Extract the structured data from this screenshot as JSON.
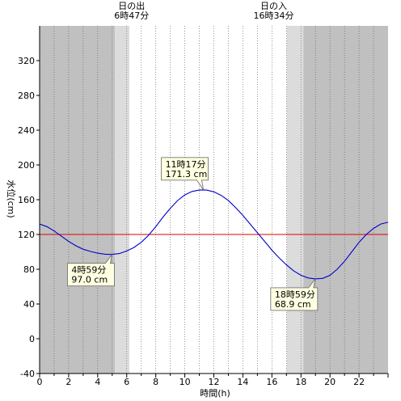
{
  "chart_data": {
    "type": "line",
    "xlabel": "時間(h)",
    "ylabel": "水位(cm)",
    "xlim": [
      0,
      24
    ],
    "ylim": [
      -40,
      360
    ],
    "x_ticks": [
      0,
      2,
      4,
      6,
      8,
      10,
      12,
      14,
      16,
      18,
      20,
      22
    ],
    "y_ticks": [
      -40,
      0,
      40,
      80,
      120,
      160,
      200,
      240,
      280,
      320
    ],
    "grid": "vertical dotted hourly",
    "reference_line": {
      "value": 120,
      "color": "#e00000"
    },
    "series": [
      {
        "color": "#0000cc",
        "x": [
          0,
          0.5,
          1,
          1.5,
          2,
          2.5,
          3,
          3.5,
          4,
          4.5,
          4.98,
          5.5,
          6,
          6.5,
          7,
          7.5,
          8,
          8.5,
          9,
          9.5,
          10,
          10.5,
          11,
          11.28,
          11.5,
          12,
          12.5,
          13,
          13.5,
          14,
          14.5,
          15,
          15.5,
          16,
          16.5,
          17,
          17.5,
          18,
          18.5,
          18.98,
          19.5,
          20,
          20.5,
          21,
          21.5,
          22,
          22.5,
          23,
          23.5,
          24
        ],
        "y": [
          132,
          129,
          124,
          118,
          112,
          107,
          103,
          100.5,
          98.5,
          97.3,
          97.0,
          98,
          101,
          105,
          111,
          119,
          129,
          140,
          150,
          159,
          165.5,
          169.5,
          171.1,
          171.3,
          171.1,
          169,
          165,
          159,
          151,
          142,
          132,
          122,
          112,
          102,
          93,
          85,
          78,
          73,
          70,
          68.9,
          69.5,
          73,
          80,
          89,
          100,
          111,
          120,
          127,
          132,
          134
        ]
      }
    ],
    "night_shading": {
      "sunrise_hour": 6.783,
      "sunset_hour": 16.567,
      "dark_color": "#c0c0c0",
      "twilight_color": "#dcdcdc"
    },
    "sun_labels": [
      {
        "hour": 6.783,
        "title": "日の出",
        "time": "6時47分"
      },
      {
        "hour": 16.567,
        "title": "日の入",
        "time": "16時34分"
      }
    ],
    "annotations": [
      {
        "x": 11.28,
        "y": 171.3,
        "time": "11時17分",
        "value": "171.3 cm",
        "pos": "above-left"
      },
      {
        "x": 4.98,
        "y": 97.0,
        "time": "4時59分",
        "value": "97.0 cm",
        "pos": "below-left"
      },
      {
        "x": 18.98,
        "y": 68.9,
        "time": "18時59分",
        "value": "68.9 cm",
        "pos": "below-left"
      }
    ]
  }
}
